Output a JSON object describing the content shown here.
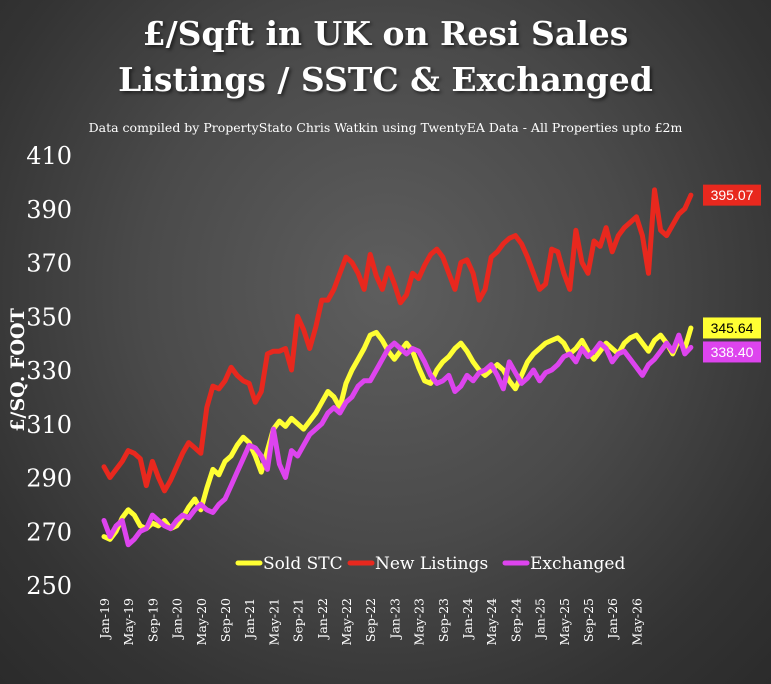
{
  "title_line1": "£/Sqft in UK on Resi Sales",
  "title_line2": "Listings / SSTC & Exchanged",
  "subtitle": "Data compiled by PropertyStato Chris Watkin using TwentyEA Data - All Properties upto £2m",
  "chart_data": {
    "type": "line",
    "title": "£/Sqft in UK on Resi Sales Listings / SSTC & Exchanged",
    "ylabel": "£/SQ. FOOT",
    "xlabel": "",
    "ylim": [
      250,
      410
    ],
    "y_ticks": [
      250,
      270,
      290,
      310,
      330,
      350,
      370,
      390,
      410
    ],
    "x_tick_labels": [
      "Jan-19",
      "May-19",
      "Sep-19",
      "Jan-20",
      "May-20",
      "Sep-20",
      "Jan-21",
      "May-21",
      "Sep-21",
      "Jan-22",
      "May-22",
      "Sep-22",
      "Jan-23",
      "May-23",
      "Sep-23",
      "Jan-24",
      "May-24",
      "Sep-24",
      "Jan-25",
      "May-25",
      "Sep-25",
      "Jan-26",
      "May-26"
    ],
    "x_start": "2019-01",
    "legend_position": "bottom",
    "grid": false,
    "series": [
      {
        "name": "Sold STC",
        "color": "#ffff33",
        "end_label": "345.64",
        "values": [
          268,
          267,
          270,
          275,
          278,
          276,
          272,
          271,
          273,
          272,
          274,
          271,
          272,
          275,
          279,
          282,
          278,
          286,
          293,
          291,
          296,
          298,
          302,
          305,
          303,
          298,
          292,
          300,
          308,
          311,
          309,
          312,
          310,
          308,
          311,
          314,
          318,
          322,
          320,
          316,
          325,
          330,
          334,
          338,
          343,
          344,
          341,
          337,
          334,
          337,
          340,
          337,
          331,
          326,
          325,
          330,
          333,
          335,
          338,
          340,
          337,
          333,
          330,
          328,
          330,
          332,
          330,
          326,
          323,
          328,
          333,
          336,
          338,
          340,
          341,
          342,
          340,
          336,
          338,
          341,
          337,
          334,
          337,
          340,
          338,
          336,
          340,
          342,
          343,
          340,
          337,
          341,
          343,
          340,
          336,
          341,
          338,
          345.64
        ]
      },
      {
        "name": "New Listings",
        "color": "#e8281e",
        "end_label": "395.07",
        "values": [
          294,
          290,
          293,
          296,
          300,
          299,
          297,
          287,
          296,
          290,
          285,
          289,
          294,
          299,
          303,
          301,
          299,
          316,
          324,
          323,
          326,
          331,
          328,
          326,
          325,
          318,
          322,
          336,
          337,
          337,
          338,
          330,
          350,
          345,
          338,
          346,
          356,
          356,
          360,
          366,
          372,
          370,
          366,
          360,
          373,
          365,
          360,
          368,
          362,
          355,
          358,
          366,
          364,
          369,
          373,
          375,
          372,
          366,
          360,
          370,
          371,
          366,
          356,
          360,
          372,
          374,
          377,
          379,
          380,
          377,
          372,
          366,
          360,
          362,
          375,
          374,
          366,
          360,
          382,
          370,
          366,
          378,
          376,
          383,
          374,
          380,
          383,
          385,
          387,
          380,
          366,
          397,
          382,
          380,
          384,
          388,
          390,
          395.07
        ]
      },
      {
        "name": "Exchanged",
        "color": "#dd44ee",
        "end_label": "338.40",
        "values": [
          274,
          268,
          272,
          274,
          265,
          267,
          270,
          271,
          276,
          274,
          272,
          271,
          274,
          276,
          275,
          278,
          280,
          278,
          277,
          280,
          282,
          287,
          292,
          297,
          302,
          301,
          298,
          293,
          308,
          295,
          290,
          300,
          298,
          302,
          306,
          308,
          310,
          314,
          316,
          314,
          318,
          320,
          324,
          326,
          326,
          330,
          334,
          338,
          340,
          338,
          336,
          338,
          337,
          333,
          328,
          325,
          326,
          328,
          322,
          324,
          328,
          326,
          329,
          330,
          332,
          328,
          323,
          333,
          329,
          325,
          327,
          330,
          326,
          329,
          330,
          332,
          335,
          336,
          333,
          338,
          335,
          337,
          340,
          338,
          333,
          336,
          337,
          334,
          331,
          328,
          332,
          334,
          337,
          340,
          337,
          343,
          336,
          338.4
        ]
      }
    ]
  }
}
